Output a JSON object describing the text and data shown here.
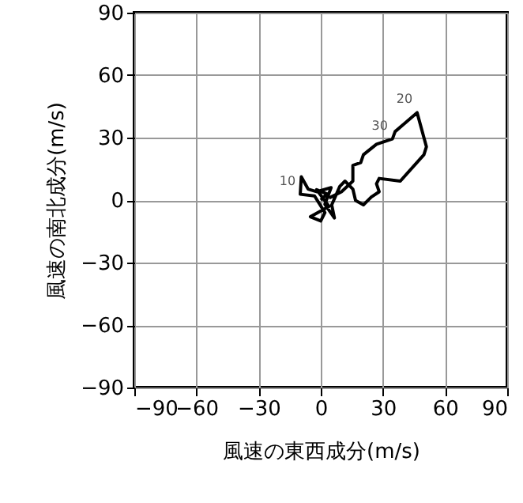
{
  "chart_data": {
    "type": "line",
    "xlabel": "風速の東西成分(m/s)",
    "ylabel": "風速の南北成分(m/s)",
    "x": [
      0,
      3,
      -2,
      4,
      -5,
      0,
      2,
      -3,
      -9.9,
      -9.4,
      -6.1,
      -2,
      5,
      2,
      6.6,
      5.3,
      9.2,
      11.7,
      15.5,
      16.8,
      20.6,
      24.4,
      28.2,
      26.9,
      28.2,
      38.4,
      49.8,
      51,
      46.5,
      35.9,
      34.6,
      26.9,
      20.6,
      19.3,
      15.5,
      15.5,
      10,
      4
    ],
    "series": [
      {
        "color": "#000000",
        "values": [
          0,
          3,
          5,
          -3,
          -8,
          -10,
          -6,
          2,
          2.8,
          11.2,
          5.3,
          4,
          6,
          -2,
          -8.6,
          -2.3,
          6.6,
          9.1,
          5.3,
          -0.2,
          -2.3,
          1.5,
          4,
          7.8,
          10.4,
          9.1,
          21.8,
          25.6,
          42,
          32.9,
          29.4,
          26.8,
          21.8,
          18,
          16.7,
          9.1,
          4,
          1
        ]
      }
    ],
    "xlim": [
      -90,
      90
    ],
    "ylim": [
      -90,
      90
    ],
    "xticks": [
      {
        "value": -90,
        "label": "−90"
      },
      {
        "value": -60,
        "label": "−60"
      },
      {
        "value": -30,
        "label": "−30"
      },
      0,
      30,
      60,
      90
    ],
    "yticks": [
      {
        "value": -90,
        "label": "−90"
      },
      {
        "value": -60,
        "label": "−60"
      },
      {
        "value": -30,
        "label": "−30"
      },
      0,
      30,
      60,
      90
    ],
    "grid": true,
    "marker": "none",
    "line_style": "solid",
    "annotations": [
      {
        "text": "10",
        "x": -9.9,
        "y": 2.8
      },
      {
        "text": "20",
        "x": 46.5,
        "y": 42
      },
      {
        "text": "30",
        "x": 34.6,
        "y": 29.4
      }
    ]
  }
}
